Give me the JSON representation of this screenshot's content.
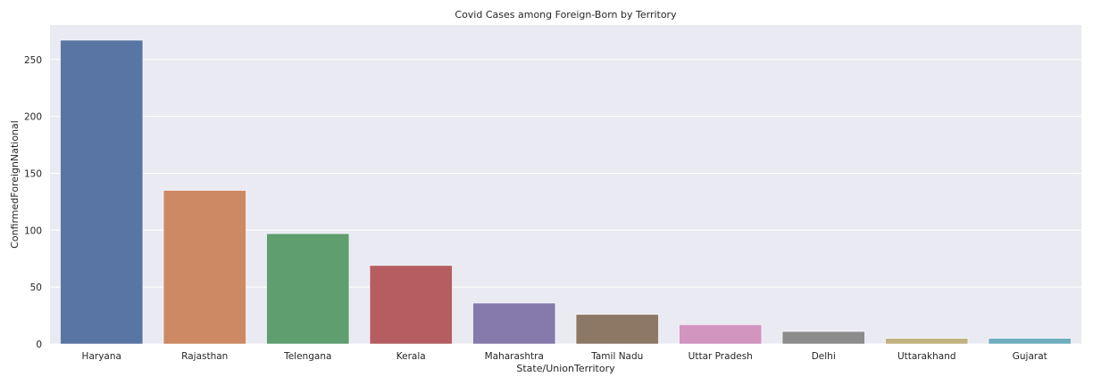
{
  "chart_data": {
    "type": "bar",
    "title": "Covid Cases among Foreign-Born by Territory",
    "xlabel": "State/UnionTerritory",
    "ylabel": "ConfirmedForeignNational",
    "categories": [
      "Haryana",
      "Rajasthan",
      "Telengana",
      "Kerala",
      "Maharashtra",
      "Tamil Nadu",
      "Uttar Pradesh",
      "Delhi",
      "Uttarakhand",
      "Gujarat"
    ],
    "values": [
      267,
      135,
      97,
      69,
      36,
      26,
      17,
      11,
      5,
      5
    ],
    "colors": [
      "#5975a4",
      "#cc8963",
      "#5f9e6e",
      "#b55d60",
      "#857aab",
      "#8d7866",
      "#d195c0",
      "#8c8c8c",
      "#c1b37f",
      "#6fadbf"
    ],
    "ylim": [
      0,
      280.35
    ],
    "yticks": [
      0,
      50,
      100,
      150,
      200,
      250
    ],
    "grid": true,
    "background": "#eaeaf2",
    "gridcolor": "#ffffff"
  }
}
